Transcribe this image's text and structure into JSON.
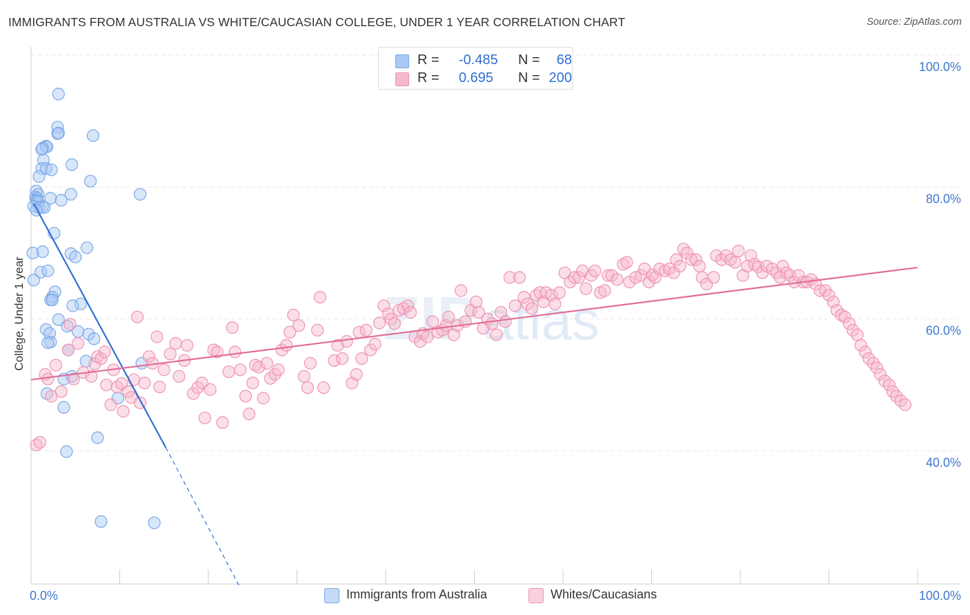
{
  "title": "IMMIGRANTS FROM AUSTRALIA VS WHITE/CAUCASIAN COLLEGE, UNDER 1 YEAR CORRELATION CHART",
  "source": "Source: ZipAtlas.com",
  "watermark": {
    "zip": "ZIP",
    "atlas": "atlas"
  },
  "colors": {
    "blue_fill": "#a9c8f3",
    "blue_stroke": "#7aa8e6",
    "blue_line": "#2f6fd0",
    "pink_fill": "#f6b9cc",
    "pink_stroke": "#ee93b1",
    "pink_line": "#e06d96",
    "axis_text": "#3f78cf",
    "grid": "#e6e6e6"
  },
  "legend": {
    "rows": [
      {
        "r_label": "R =",
        "r_value": "-0.485",
        "n_label": "N =",
        "n_value": "68",
        "color": "#a9c8f3"
      },
      {
        "r_label": "R =",
        "r_value": "0.695",
        "n_label": "N =",
        "n_value": "200",
        "color": "#f6b9cc"
      }
    ]
  },
  "bottom_legend": [
    {
      "label": "Immigrants from Australia",
      "color": "#a9c8f3"
    },
    {
      "label": "Whites/Caucasians",
      "color": "#f6b9cc"
    }
  ],
  "chart_data": {
    "type": "scatter",
    "title": "IMMIGRANTS FROM AUSTRALIA VS WHITE/CAUCASIAN COLLEGE, UNDER 1 YEAR CORRELATION CHART",
    "xlabel": "",
    "ylabel": "College, Under 1 year",
    "xlim": [
      0,
      100
    ],
    "ylim": [
      18,
      102
    ],
    "x_tick_labels": [
      "0.0%",
      "100.0%"
    ],
    "y_ticks": [
      40,
      60,
      80,
      100
    ],
    "y_tick_labels": [
      "40.0%",
      "60.0%",
      "80.0%",
      "100.0%"
    ],
    "grid": true,
    "legend_position": "top-center",
    "series": [
      {
        "name": "Immigrants from Australia",
        "r": -0.485,
        "n": 68,
        "trend": {
          "x0": 0.3,
          "y0": 77.5,
          "x1": 15.2,
          "y1": 40.5,
          "dash_to_x": 23.5,
          "dash_to_y": 19.5
        },
        "points": [
          [
            3.1,
            94.1
          ],
          [
            3.0,
            89.1
          ],
          [
            7.0,
            87.8
          ],
          [
            3.0,
            88.1
          ],
          [
            3.1,
            88.2
          ],
          [
            1.7,
            86.2
          ],
          [
            1.8,
            86.1
          ],
          [
            1.3,
            85.9
          ],
          [
            1.2,
            85.7
          ],
          [
            1.4,
            84.1
          ],
          [
            4.6,
            83.4
          ],
          [
            1.2,
            82.8
          ],
          [
            1.7,
            82.8
          ],
          [
            2.3,
            82.6
          ],
          [
            0.9,
            81.6
          ],
          [
            6.7,
            80.9
          ],
          [
            0.6,
            79.4
          ],
          [
            0.8,
            78.9
          ],
          [
            12.3,
            78.9
          ],
          [
            4.5,
            78.9
          ],
          [
            0.5,
            78.5
          ],
          [
            0.7,
            78.3
          ],
          [
            0.6,
            78.0
          ],
          [
            0.7,
            77.9
          ],
          [
            0.8,
            77.7
          ],
          [
            2.2,
            78.3
          ],
          [
            3.4,
            78.0
          ],
          [
            0.3,
            77.1
          ],
          [
            0.9,
            76.9
          ],
          [
            1.3,
            77.0
          ],
          [
            1.5,
            76.9
          ],
          [
            0.6,
            76.5
          ],
          [
            2.6,
            73.0
          ],
          [
            6.3,
            70.8
          ],
          [
            1.3,
            70.2
          ],
          [
            4.5,
            69.9
          ],
          [
            0.2,
            70.0
          ],
          [
            5.0,
            69.4
          ],
          [
            1.1,
            67.1
          ],
          [
            1.9,
            67.3
          ],
          [
            2.7,
            64.1
          ],
          [
            2.4,
            63.3
          ],
          [
            2.2,
            62.9
          ],
          [
            5.6,
            62.3
          ],
          [
            4.7,
            62.0
          ],
          [
            3.1,
            59.9
          ],
          [
            4.1,
            58.9
          ],
          [
            1.7,
            58.4
          ],
          [
            5.3,
            58.1
          ],
          [
            0.3,
            65.9
          ],
          [
            2.1,
            57.8
          ],
          [
            6.5,
            57.7
          ],
          [
            7.1,
            57.0
          ],
          [
            2.2,
            56.5
          ],
          [
            1.9,
            56.4
          ],
          [
            4.2,
            55.3
          ],
          [
            6.2,
            53.6
          ],
          [
            12.5,
            53.3
          ],
          [
            4.6,
            51.3
          ],
          [
            3.7,
            50.9
          ],
          [
            1.8,
            48.7
          ],
          [
            9.8,
            48.0
          ],
          [
            3.7,
            46.6
          ],
          [
            7.5,
            42.0
          ],
          [
            4.0,
            39.9
          ],
          [
            7.9,
            29.3
          ],
          [
            13.9,
            29.1
          ],
          [
            2.4,
            62.9
          ]
        ]
      },
      {
        "name": "Whites/Caucasians",
        "r": 0.695,
        "n": 200,
        "trend": {
          "x0": 0.0,
          "y0": 50.8,
          "x1": 100.0,
          "y1": 67.8
        },
        "points": [
          [
            0.6,
            40.9
          ],
          [
            1.0,
            41.3
          ],
          [
            1.6,
            51.6
          ],
          [
            1.9,
            50.9
          ],
          [
            2.3,
            48.3
          ],
          [
            2.8,
            53.0
          ],
          [
            3.4,
            49.0
          ],
          [
            4.2,
            55.3
          ],
          [
            4.4,
            59.2
          ],
          [
            4.8,
            50.9
          ],
          [
            5.3,
            56.3
          ],
          [
            5.9,
            51.9
          ],
          [
            6.8,
            51.3
          ],
          [
            7.2,
            53.2
          ],
          [
            7.5,
            54.3
          ],
          [
            7.9,
            54.0
          ],
          [
            8.3,
            55.0
          ],
          [
            8.5,
            50.0
          ],
          [
            9.0,
            47.0
          ],
          [
            9.3,
            52.3
          ],
          [
            9.7,
            49.7
          ],
          [
            10.2,
            50.2
          ],
          [
            10.4,
            46.0
          ],
          [
            11.0,
            49.0
          ],
          [
            11.3,
            48.1
          ],
          [
            11.6,
            50.8
          ],
          [
            12.0,
            60.3
          ],
          [
            12.3,
            47.3
          ],
          [
            12.8,
            50.3
          ],
          [
            13.3,
            54.3
          ],
          [
            13.7,
            53.3
          ],
          [
            14.2,
            57.3
          ],
          [
            14.5,
            49.7
          ],
          [
            15.0,
            52.3
          ],
          [
            15.7,
            54.7
          ],
          [
            16.3,
            56.3
          ],
          [
            16.7,
            51.3
          ],
          [
            17.3,
            53.7
          ],
          [
            17.6,
            56.0
          ],
          [
            18.3,
            48.7
          ],
          [
            18.8,
            49.6
          ],
          [
            19.3,
            50.3
          ],
          [
            19.6,
            45.0
          ],
          [
            20.2,
            49.3
          ],
          [
            20.6,
            55.3
          ],
          [
            21.0,
            55.0
          ],
          [
            21.6,
            44.3
          ],
          [
            22.3,
            52.0
          ],
          [
            22.7,
            58.7
          ],
          [
            23.0,
            55.0
          ],
          [
            23.6,
            52.3
          ],
          [
            24.2,
            48.3
          ],
          [
            24.6,
            45.6
          ],
          [
            25.0,
            50.3
          ],
          [
            25.3,
            53.0
          ],
          [
            25.7,
            52.7
          ],
          [
            26.2,
            48.0
          ],
          [
            26.6,
            53.3
          ],
          [
            27.0,
            51.0
          ],
          [
            27.5,
            51.6
          ],
          [
            27.9,
            52.3
          ],
          [
            28.3,
            55.3
          ],
          [
            28.8,
            56.0
          ],
          [
            29.2,
            58.0
          ],
          [
            29.6,
            60.6
          ],
          [
            30.2,
            59.0
          ],
          [
            30.8,
            51.3
          ],
          [
            31.2,
            49.6
          ],
          [
            31.5,
            53.3
          ],
          [
            32.3,
            58.3
          ],
          [
            32.6,
            63.3
          ],
          [
            33.0,
            49.6
          ],
          [
            34.2,
            53.7
          ],
          [
            34.6,
            56.0
          ],
          [
            35.1,
            54.0
          ],
          [
            35.6,
            56.6
          ],
          [
            36.2,
            50.3
          ],
          [
            36.7,
            51.6
          ],
          [
            37.0,
            58.0
          ],
          [
            37.3,
            54.0
          ],
          [
            37.8,
            58.3
          ],
          [
            38.3,
            55.3
          ],
          [
            38.8,
            56.2
          ],
          [
            39.3,
            59.4
          ],
          [
            39.8,
            62.0
          ],
          [
            40.3,
            60.8
          ],
          [
            40.6,
            60.0
          ],
          [
            41.0,
            59.3
          ],
          [
            41.5,
            61.3
          ],
          [
            42.0,
            61.6
          ],
          [
            42.5,
            62.0
          ],
          [
            42.8,
            61.0
          ],
          [
            43.3,
            57.3
          ],
          [
            43.9,
            56.6
          ],
          [
            44.2,
            57.8
          ],
          [
            44.7,
            57.3
          ],
          [
            45.3,
            59.6
          ],
          [
            45.9,
            58.0
          ],
          [
            46.4,
            58.3
          ],
          [
            46.8,
            59.0
          ],
          [
            47.1,
            60.3
          ],
          [
            47.7,
            57.6
          ],
          [
            48.1,
            59.0
          ],
          [
            48.5,
            64.3
          ],
          [
            49.0,
            59.6
          ],
          [
            49.6,
            61.3
          ],
          [
            50.2,
            62.6
          ],
          [
            50.5,
            61.0
          ],
          [
            51.0,
            58.6
          ],
          [
            51.5,
            60.0
          ],
          [
            52.0,
            59.3
          ],
          [
            52.5,
            57.6
          ],
          [
            53.0,
            61.0
          ],
          [
            53.5,
            59.6
          ],
          [
            54.0,
            66.3
          ],
          [
            54.6,
            62.0
          ],
          [
            55.1,
            66.3
          ],
          [
            55.6,
            63.3
          ],
          [
            56.0,
            62.3
          ],
          [
            56.5,
            61.6
          ],
          [
            57.0,
            63.6
          ],
          [
            57.4,
            64.0
          ],
          [
            57.8,
            62.6
          ],
          [
            58.1,
            64.0
          ],
          [
            58.7,
            63.6
          ],
          [
            59.1,
            62.3
          ],
          [
            59.6,
            64.0
          ],
          [
            60.2,
            67.0
          ],
          [
            60.8,
            65.6
          ],
          [
            61.3,
            66.3
          ],
          [
            61.8,
            66.3
          ],
          [
            62.2,
            67.3
          ],
          [
            62.6,
            64.6
          ],
          [
            63.2,
            66.6
          ],
          [
            63.6,
            67.3
          ],
          [
            64.2,
            64.0
          ],
          [
            64.7,
            64.3
          ],
          [
            65.1,
            66.6
          ],
          [
            65.5,
            66.6
          ],
          [
            66.1,
            66.0
          ],
          [
            66.8,
            68.3
          ],
          [
            67.2,
            68.6
          ],
          [
            67.5,
            65.6
          ],
          [
            68.2,
            66.3
          ],
          [
            68.8,
            66.6
          ],
          [
            69.2,
            67.6
          ],
          [
            69.7,
            65.6
          ],
          [
            70.1,
            66.7
          ],
          [
            70.4,
            66.3
          ],
          [
            70.9,
            67.6
          ],
          [
            71.5,
            67.3
          ],
          [
            72.0,
            67.6
          ],
          [
            72.5,
            67.0
          ],
          [
            72.8,
            69.0
          ],
          [
            73.2,
            68.0
          ],
          [
            73.6,
            70.6
          ],
          [
            74.0,
            70.0
          ],
          [
            74.5,
            69.0
          ],
          [
            75.0,
            69.0
          ],
          [
            75.4,
            68.0
          ],
          [
            75.7,
            66.3
          ],
          [
            76.2,
            65.3
          ],
          [
            77.0,
            66.3
          ],
          [
            77.3,
            69.6
          ],
          [
            77.9,
            69.0
          ],
          [
            78.4,
            69.6
          ],
          [
            78.9,
            69.0
          ],
          [
            79.4,
            68.6
          ],
          [
            79.8,
            70.3
          ],
          [
            80.3,
            66.6
          ],
          [
            80.8,
            68.0
          ],
          [
            81.2,
            69.6
          ],
          [
            81.6,
            68.3
          ],
          [
            82.0,
            67.9
          ],
          [
            82.5,
            67.0
          ],
          [
            83.0,
            68.0
          ],
          [
            83.6,
            67.6
          ],
          [
            84.1,
            67.0
          ],
          [
            84.5,
            66.3
          ],
          [
            84.8,
            68.0
          ],
          [
            85.2,
            67.0
          ],
          [
            85.6,
            66.6
          ],
          [
            86.1,
            65.6
          ],
          [
            86.6,
            66.6
          ],
          [
            87.1,
            65.6
          ],
          [
            87.5,
            65.6
          ],
          [
            88.0,
            66.0
          ],
          [
            88.5,
            65.3
          ],
          [
            89.0,
            64.3
          ],
          [
            89.6,
            64.3
          ],
          [
            90.0,
            63.6
          ],
          [
            90.5,
            62.6
          ],
          [
            90.9,
            61.3
          ],
          [
            91.4,
            60.6
          ],
          [
            91.8,
            60.3
          ],
          [
            92.3,
            59.3
          ],
          [
            92.7,
            58.3
          ],
          [
            93.2,
            57.6
          ],
          [
            93.6,
            56.0
          ],
          [
            94.1,
            55.0
          ],
          [
            94.5,
            54.0
          ],
          [
            95.0,
            53.3
          ],
          [
            95.4,
            52.6
          ],
          [
            95.8,
            51.6
          ],
          [
            96.3,
            50.6
          ],
          [
            96.8,
            50.0
          ],
          [
            97.2,
            49.0
          ],
          [
            97.6,
            48.3
          ],
          [
            98.1,
            47.6
          ],
          [
            98.6,
            47.0
          ]
        ]
      }
    ]
  }
}
